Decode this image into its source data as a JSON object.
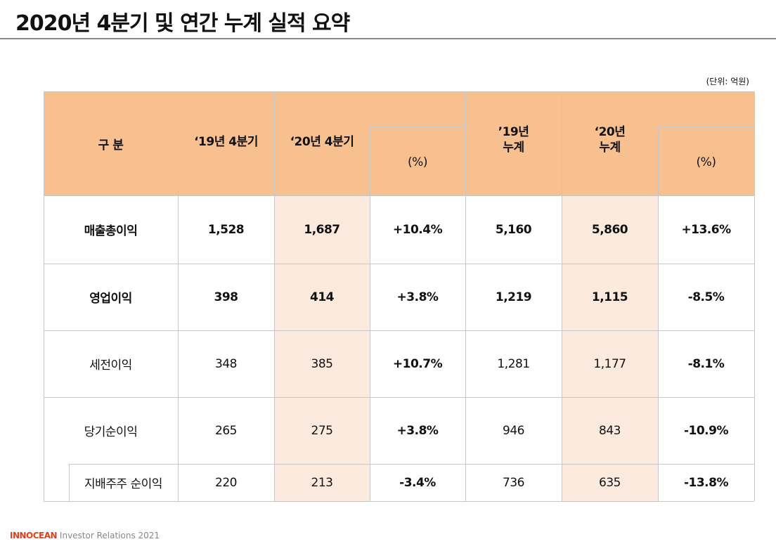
{
  "header": {
    "title": "2020년 4분기 및 연간 누계 실적 요약",
    "unit": "(단위: 억원)"
  },
  "table": {
    "columns": [
      [
        "구 분"
      ],
      [
        "‘19년 4분기"
      ],
      [
        "‘20년 4분기"
      ],
      [
        "(%)"
      ],
      [
        "’19년",
        "누계"
      ],
      [
        "‘20년",
        "누계"
      ],
      [
        "(%)"
      ]
    ],
    "rows": [
      [
        "매출총이익",
        "1,528",
        "1,687",
        "+10.4%",
        "5,160",
        "5,860",
        "+13.6%"
      ],
      [
        "영업이익",
        "398",
        "414",
        "+3.8%",
        "1,219",
        "1,115",
        "-8.5%"
      ],
      [
        "세전이익",
        "348",
        "385",
        "+10.7%",
        "1,281",
        "1,177",
        "-8.1%"
      ],
      [
        "당기순이익",
        "265",
        "275",
        "+3.8%",
        "946",
        "843",
        "-10.9%"
      ],
      [
        "지배주주 순이익",
        "220",
        "213",
        "-3.4%",
        "736",
        "635",
        "-13.8%"
      ]
    ]
  },
  "footer": {
    "brand": "INNOCEAN",
    "text": "Investor Relations 2021"
  }
}
